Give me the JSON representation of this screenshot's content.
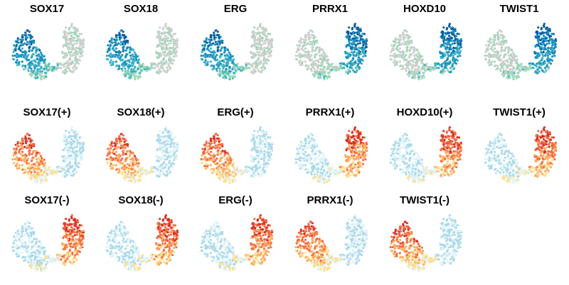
{
  "figure": {
    "panel_titles": [
      "SOX17",
      "SOX18",
      "ERG",
      "PRRX1",
      "HOXD10",
      "TWIST1",
      "SOX17(+)",
      "SOX18(+)",
      "ERG(+)",
      "PRRX1(+)",
      "HOXD10(+)",
      "TWIST1(+)",
      "SOX17(-)",
      "SOX18(-)",
      "ERG(-)",
      "PRRX1(-)",
      "TWIST1(-)"
    ]
  },
  "chart_data": {
    "type": "scatter",
    "description_free": true,
    "layout": "embedding panels, 3 rows",
    "palettes": {
      "expression": [
        "#cfcfcf",
        "#9fd8b8",
        "#41b6c4",
        "#1d91c0",
        "#0c5e9e"
      ],
      "regulon": [
        "#abd9e9",
        "#e0f3f8",
        "#fee090",
        "#fdae61",
        "#f46d43",
        "#d73027"
      ]
    },
    "panels": [
      {
        "title": "SOX17",
        "palette": "expression",
        "high_cluster": "left"
      },
      {
        "title": "SOX18",
        "palette": "expression",
        "high_cluster": "left"
      },
      {
        "title": "ERG",
        "palette": "expression",
        "high_cluster": "left"
      },
      {
        "title": "PRRX1",
        "palette": "expression",
        "high_cluster": "right"
      },
      {
        "title": "HOXD10",
        "palette": "expression",
        "high_cluster": "right"
      },
      {
        "title": "TWIST1",
        "palette": "expression",
        "high_cluster": "right"
      },
      {
        "title": "SOX17(+)",
        "palette": "regulon",
        "high_cluster": "left"
      },
      {
        "title": "SOX18(+)",
        "palette": "regulon",
        "high_cluster": "left"
      },
      {
        "title": "ERG(+)",
        "palette": "regulon",
        "high_cluster": "left"
      },
      {
        "title": "PRRX1(+)",
        "palette": "regulon",
        "high_cluster": "right"
      },
      {
        "title": "HOXD10(+)",
        "palette": "regulon",
        "high_cluster": "right"
      },
      {
        "title": "TWIST1(+)",
        "palette": "regulon",
        "high_cluster": "right"
      },
      {
        "title": "SOX17(-)",
        "palette": "regulon",
        "high_cluster": "right"
      },
      {
        "title": "SOX18(-)",
        "palette": "regulon",
        "high_cluster": "right"
      },
      {
        "title": "ERG(-)",
        "palette": "regulon",
        "high_cluster": "right"
      },
      {
        "title": "PRRX1(-)",
        "palette": "regulon",
        "high_cluster": "left"
      },
      {
        "title": "TWIST1(-)",
        "palette": "regulon",
        "high_cluster": "left"
      }
    ]
  }
}
